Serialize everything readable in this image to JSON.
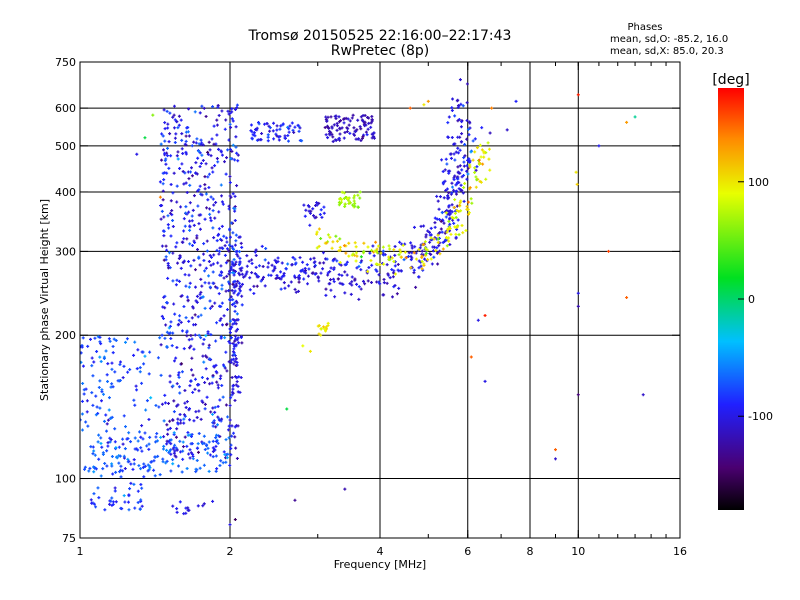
{
  "chart_data": {
    "type": "scatter",
    "title": "Tromsø 20150525 22:16:00–22:17:43",
    "subtitle": "RwPretec (8p)",
    "xlabel": "Frequency [MHz]",
    "ylabel": "Stationary phase Virtual Height [km]",
    "x_scale": "log",
    "y_scale": "log",
    "xlim": [
      1,
      16
    ],
    "ylim": [
      75,
      750
    ],
    "x_ticks": [
      1,
      2,
      4,
      6,
      8,
      10,
      16
    ],
    "x_tick_labels": [
      "1",
      "2",
      "4",
      "6",
      "8",
      "10",
      "16"
    ],
    "x_gridlines": [
      2,
      4,
      6,
      8,
      10
    ],
    "y_ticks": [
      75,
      100,
      200,
      300,
      400,
      500,
      600,
      750
    ],
    "y_tick_labels": [
      "75",
      "100",
      "200",
      "300",
      "400",
      "500",
      "600",
      "750"
    ],
    "y_gridlines": [
      100,
      200,
      300,
      400,
      500,
      600
    ],
    "grid": true,
    "legend": {
      "heading": "Phases",
      "lines": [
        "mean, sd,O: -85.2, 16.0",
        "mean, sd,X: 85.0, 20.3"
      ],
      "placement": "top-right"
    },
    "colorbar": {
      "label": "[deg]",
      "range": [
        -180,
        180
      ],
      "ticks": [
        100,
        0,
        -100
      ],
      "tick_labels": [
        "100",
        "0",
        "-100"
      ],
      "colormap": "rainbow (black-purple-blue-cyan-green-yellow-orange-red)"
    },
    "series": [
      {
        "mode": "O",
        "phase_mean": -85.2,
        "phase_sd": 16.0
      },
      {
        "mode": "X",
        "phase_mean": 85.0,
        "phase_sd": 20.3
      }
    ],
    "clusters": [
      {
        "f_min": 1.45,
        "f_max": 2.08,
        "h_min": 110,
        "h_max": 610,
        "n": 700,
        "phase": -95,
        "phase_sd": 18
      },
      {
        "f_min": 1.0,
        "f_max": 1.45,
        "h_min": 100,
        "h_max": 200,
        "n": 160,
        "phase": -75,
        "phase_sd": 15
      },
      {
        "f_min": 1.05,
        "f_max": 2.0,
        "h_min": 103,
        "h_max": 125,
        "n": 130,
        "phase": -70,
        "phase_sd": 12
      },
      {
        "f_min": 1.05,
        "f_max": 1.35,
        "h_min": 85,
        "h_max": 98,
        "n": 40,
        "phase": -80,
        "phase_sd": 14
      },
      {
        "f_min": 1.5,
        "f_max": 1.85,
        "h_min": 84,
        "h_max": 90,
        "n": 14,
        "phase": -100,
        "phase_sd": 8
      },
      {
        "f_min": 2.0,
        "f_max": 2.12,
        "h_min": 150,
        "h_max": 330,
        "n": 80,
        "phase": -100,
        "phase_sd": 12
      },
      {
        "f_min": 2.2,
        "f_max": 2.8,
        "h_min": 510,
        "h_max": 560,
        "n": 60,
        "phase": -90,
        "phase_sd": 14
      },
      {
        "f_min": 3.1,
        "f_max": 3.9,
        "h_min": 510,
        "h_max": 580,
        "n": 100,
        "phase": -115,
        "phase_sd": 10
      },
      {
        "f_min": 2.8,
        "f_max": 3.2,
        "h_min": 340,
        "h_max": 380,
        "n": 22,
        "phase": -100,
        "phase_sd": 12
      },
      {
        "f_min": 3.0,
        "f_max": 3.15,
        "h_min": 200,
        "h_max": 212,
        "n": 14,
        "phase": 100,
        "phase_sd": 6
      },
      {
        "f_min": 3.3,
        "f_max": 3.65,
        "h_min": 370,
        "h_max": 400,
        "n": 35,
        "phase": 70,
        "phase_sd": 8
      }
    ],
    "traces": [
      {
        "points": [
          [
            2.0,
            262
          ],
          [
            2.5,
            268
          ],
          [
            3.0,
            262
          ],
          [
            3.5,
            258
          ],
          [
            4.0,
            262
          ],
          [
            4.5,
            272
          ],
          [
            5.0,
            295
          ],
          [
            5.4,
            340
          ],
          [
            5.6,
            410
          ],
          [
            5.75,
            520
          ],
          [
            5.85,
            640
          ]
        ],
        "width_f": 0.03,
        "width_h": 0.045,
        "n": 320,
        "phase": -105,
        "phase_sd": 12
      },
      {
        "points": [
          [
            2.05,
            290
          ],
          [
            2.6,
            283
          ],
          [
            3.0,
            276
          ],
          [
            3.6,
            280
          ],
          [
            4.2,
            292
          ],
          [
            4.8,
            300
          ],
          [
            5.3,
            330
          ],
          [
            5.6,
            390
          ],
          [
            5.9,
            460
          ],
          [
            6.2,
            520
          ]
        ],
        "width_f": 0.03,
        "width_h": 0.04,
        "n": 180,
        "phase": -95,
        "phase_sd": 15
      },
      {
        "points": [
          [
            3.0,
            325
          ],
          [
            3.5,
            300
          ],
          [
            4.0,
            298
          ],
          [
            4.5,
            290
          ],
          [
            5.0,
            300
          ],
          [
            5.5,
            330
          ],
          [
            6.0,
            380
          ],
          [
            6.2,
            440
          ],
          [
            6.5,
            500
          ]
        ],
        "width_f": 0.03,
        "width_h": 0.035,
        "n": 180,
        "phase": 95,
        "phase_sd": 20
      }
    ],
    "outliers": [
      {
        "f": 10.0,
        "h": 640,
        "phase": 170
      },
      {
        "f": 9.9,
        "h": 440,
        "phase": 100
      },
      {
        "f": 9.95,
        "h": 415,
        "phase": 110
      },
      {
        "f": 10.0,
        "h": 230,
        "phase": -120
      },
      {
        "f": 10.0,
        "h": 245,
        "phase": -100
      },
      {
        "f": 10.0,
        "h": 150,
        "phase": -140
      },
      {
        "f": 12.5,
        "h": 560,
        "phase": 130
      },
      {
        "f": 13.0,
        "h": 575,
        "phase": -10
      },
      {
        "f": 12.5,
        "h": 240,
        "phase": 150
      },
      {
        "f": 11.0,
        "h": 500,
        "phase": -95
      },
      {
        "f": 13.5,
        "h": 150,
        "phase": -110
      },
      {
        "f": 11.5,
        "h": 300,
        "phase": 160
      },
      {
        "f": 9.0,
        "h": 115,
        "phase": 150
      },
      {
        "f": 9.0,
        "h": 110,
        "phase": -110
      },
      {
        "f": 6.5,
        "h": 220,
        "phase": 170
      },
      {
        "f": 6.3,
        "h": 215,
        "phase": -100
      },
      {
        "f": 6.5,
        "h": 160,
        "phase": -100
      },
      {
        "f": 6.1,
        "h": 180,
        "phase": 150
      },
      {
        "f": 6.7,
        "h": 600,
        "phase": 140
      },
      {
        "f": 7.5,
        "h": 620,
        "phase": -90
      },
      {
        "f": 7.2,
        "h": 540,
        "phase": -110
      },
      {
        "f": 2.6,
        "h": 140,
        "phase": 10
      },
      {
        "f": 2.7,
        "h": 90,
        "phase": -130
      },
      {
        "f": 3.4,
        "h": 95,
        "phase": -120
      },
      {
        "f": 2.0,
        "h": 80,
        "phase": -100
      },
      {
        "f": 2.05,
        "h": 82,
        "phase": -150
      },
      {
        "f": 2.9,
        "h": 185,
        "phase": 100
      },
      {
        "f": 2.8,
        "h": 190,
        "phase": 90
      },
      {
        "f": 1.35,
        "h": 520,
        "phase": 10
      },
      {
        "f": 1.3,
        "h": 480,
        "phase": -100
      },
      {
        "f": 1.4,
        "h": 580,
        "phase": 60
      },
      {
        "f": 1.45,
        "h": 390,
        "phase": 140
      },
      {
        "f": 4.6,
        "h": 600,
        "phase": 150
      },
      {
        "f": 4.9,
        "h": 610,
        "phase": 100
      },
      {
        "f": 5.0,
        "h": 620,
        "phase": 130
      }
    ]
  }
}
